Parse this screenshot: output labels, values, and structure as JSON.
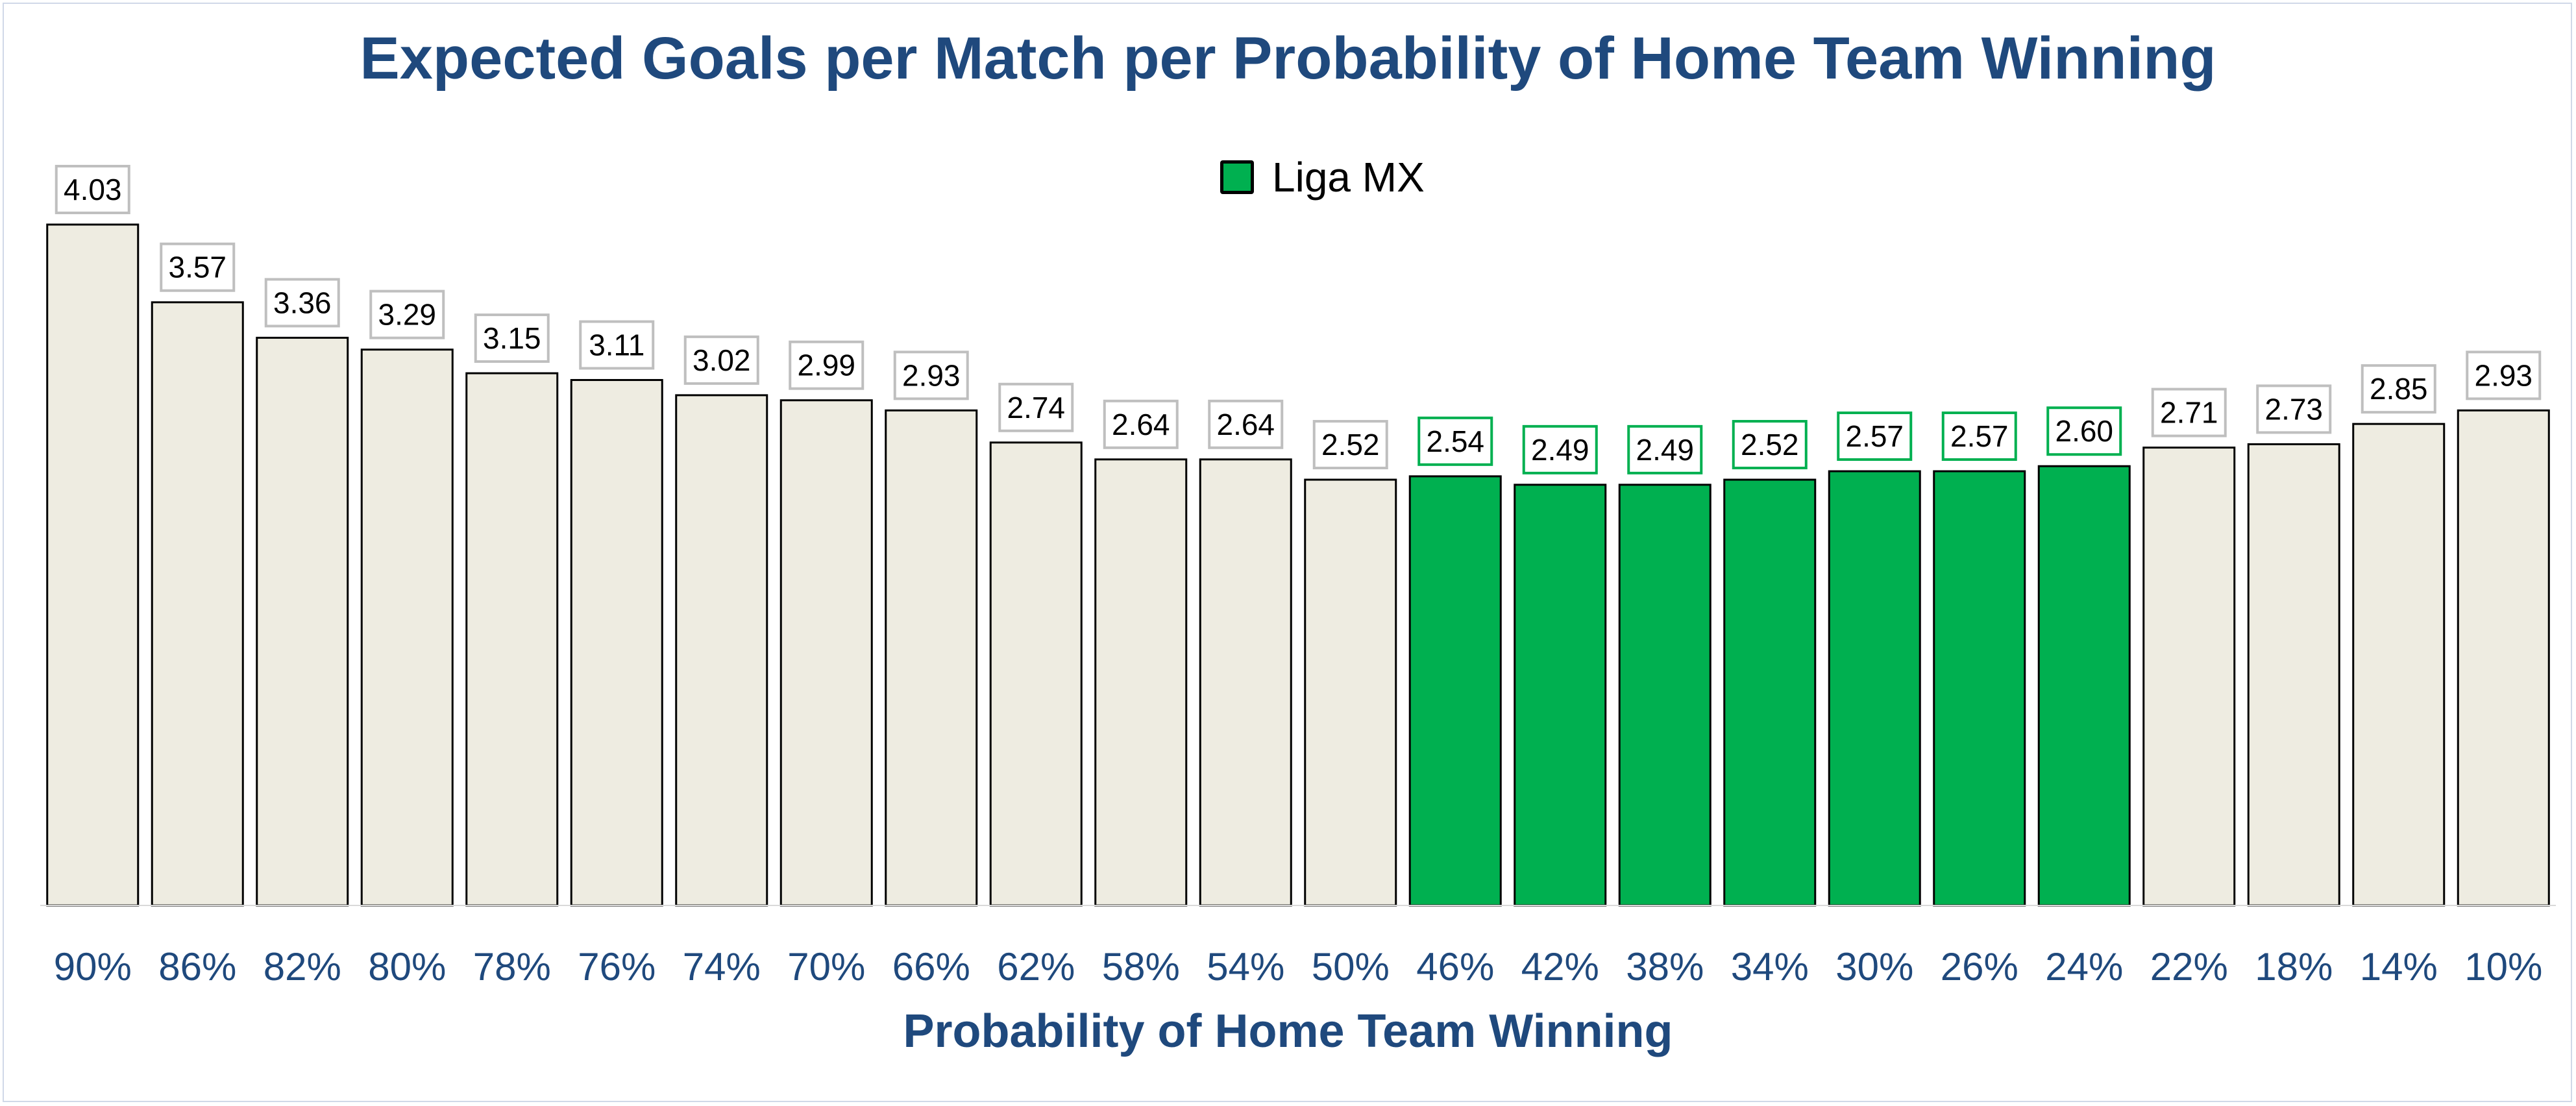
{
  "chart_data": {
    "type": "bar",
    "title": "Expected Goals per Match per Probability of Home Team Winning",
    "xlabel": "Probability of Home Team Winning",
    "ylabel": "",
    "ylim": [
      0,
      4.4
    ],
    "grid": false,
    "legend_position": "top-center",
    "categories": [
      "90%",
      "86%",
      "82%",
      "80%",
      "78%",
      "76%",
      "74%",
      "70%",
      "66%",
      "62%",
      "58%",
      "54%",
      "50%",
      "46%",
      "42%",
      "38%",
      "34%",
      "30%",
      "26%",
      "24%",
      "22%",
      "18%",
      "14%",
      "10%"
    ],
    "values": [
      4.03,
      3.57,
      3.36,
      3.29,
      3.15,
      3.11,
      3.02,
      2.99,
      2.93,
      2.74,
      2.64,
      2.64,
      2.52,
      2.54,
      2.49,
      2.49,
      2.52,
      2.57,
      2.57,
      2.6,
      2.71,
      2.73,
      2.85,
      2.93
    ],
    "data_labels": [
      "4.03",
      "3.57",
      "3.36",
      "3.29",
      "3.15",
      "3.11",
      "3.02",
      "2.99",
      "2.93",
      "2.74",
      "2.64",
      "2.64",
      "2.52",
      "2.54",
      "2.49",
      "2.49",
      "2.52",
      "2.57",
      "2.57",
      "2.60",
      "2.71",
      "2.73",
      "2.85",
      "2.93"
    ],
    "highlight_indices": [
      13,
      14,
      15,
      16,
      17,
      18,
      19
    ],
    "legend": [
      {
        "label": "Liga MX",
        "color": "#00b050"
      }
    ],
    "colors": {
      "default_bar": "#eeece1",
      "highlight_bar": "#00b050",
      "bar_edge": "#000000",
      "default_label_border": "#bfbfbf",
      "highlight_label_border": "#00b050",
      "title": "#1f497d",
      "tick_label": "#1f497d"
    }
  }
}
